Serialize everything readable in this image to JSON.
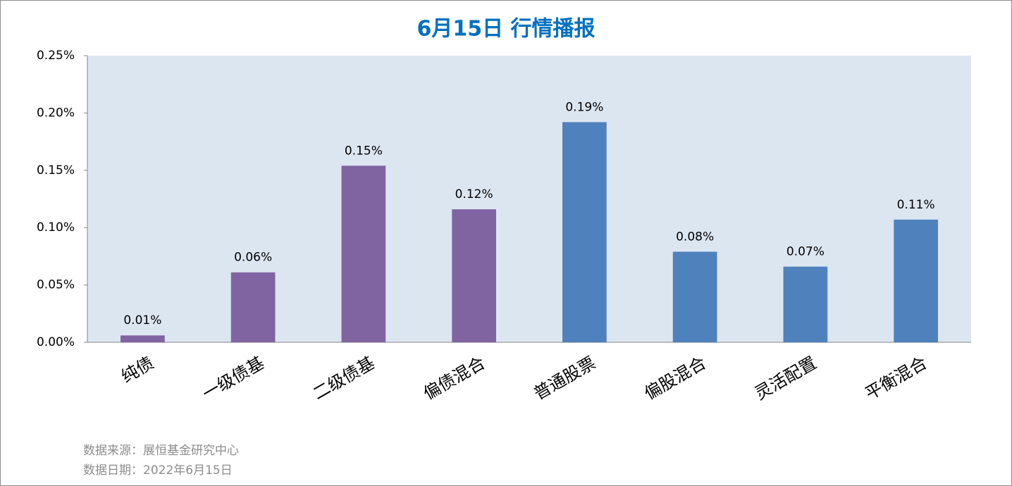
{
  "chart_data": {
    "type": "bar",
    "title": "6月15日  行情播报",
    "categories": [
      "纯债",
      "一级债基",
      "二级债基",
      "偏债混合",
      "普通股票",
      "偏股混合",
      "灵活配置",
      "平衡混合"
    ],
    "values": [
      0.006,
      0.061,
      0.154,
      0.116,
      0.192,
      0.079,
      0.066,
      0.107
    ],
    "value_labels": [
      "0.01%",
      "0.06%",
      "0.15%",
      "0.12%",
      "0.19%",
      "0.08%",
      "0.07%",
      "0.11%"
    ],
    "colors": [
      "#8064a2",
      "#8064a2",
      "#8064a2",
      "#8064a2",
      "#4f81bd",
      "#4f81bd",
      "#4f81bd",
      "#4f81bd"
    ],
    "ylim": [
      0,
      0.25
    ],
    "yticks": [
      {
        "value": 0,
        "label": "0.00%"
      },
      {
        "value": 0.05,
        "label": "0.05%"
      },
      {
        "value": 0.1,
        "label": "0.10%"
      },
      {
        "value": 0.15,
        "label": "0.15%"
      },
      {
        "value": 0.2,
        "label": "0.20%"
      },
      {
        "value": 0.25,
        "label": "0.25%"
      }
    ],
    "grid": false,
    "source": "数据来源：展恒基金研究中心",
    "date": "数据日期：2022年6月15日"
  }
}
